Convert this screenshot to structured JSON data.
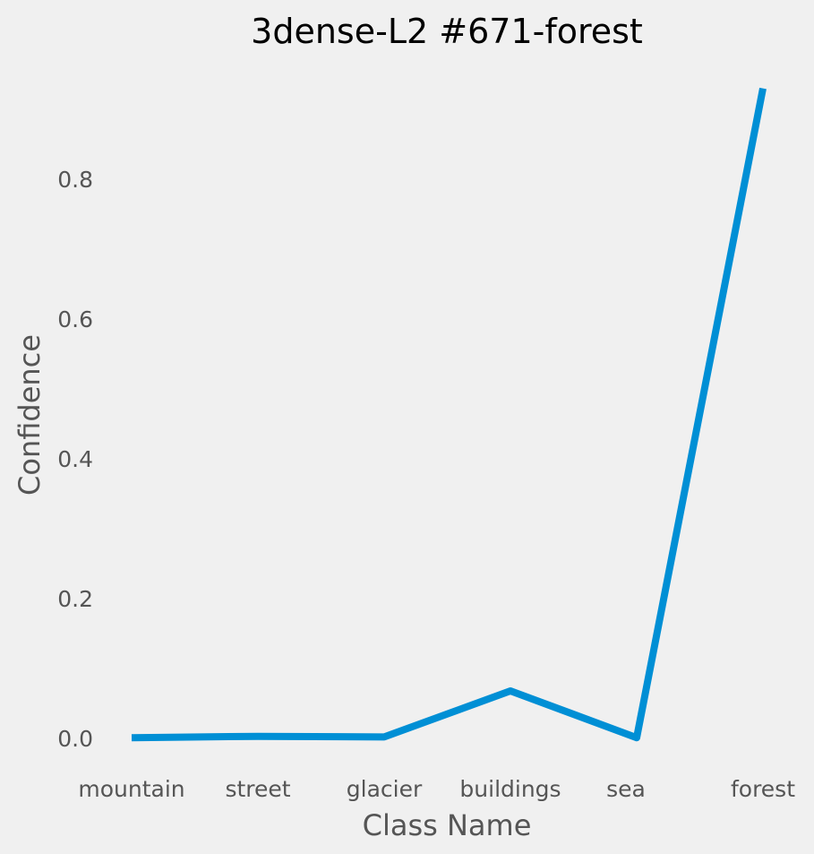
{
  "chart_data": {
    "type": "line",
    "title": "3dense-L2 #671-forest",
    "xlabel": "Class Name",
    "ylabel": "Confidence",
    "categories": [
      "mountain",
      "street",
      "glacier",
      "buildings",
      "sea",
      "forest"
    ],
    "series": [
      {
        "values": [
          0.001,
          0.003,
          0.002,
          0.068,
          0.001,
          0.93
        ]
      }
    ],
    "yticks": [
      "0.0",
      "0.2",
      "0.4",
      "0.6",
      "0.8"
    ],
    "ylim": [
      -0.015,
      0.955
    ],
    "grid": false,
    "line_color": "#008fd5",
    "background": "#f0f0f0"
  }
}
